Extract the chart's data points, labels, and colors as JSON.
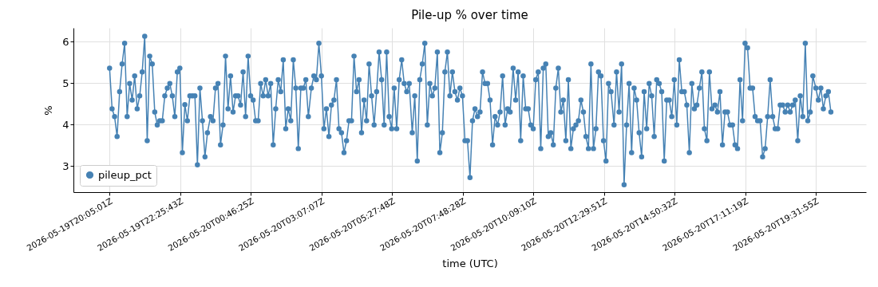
{
  "chart_data": {
    "type": "line",
    "title": "Pile-up % over time",
    "xlabel": "time (UTC)",
    "ylabel": "%",
    "x": [
      "2026-05-19T20:05",
      "2026-05-19T20:10",
      "2026-05-19T20:15",
      "2026-05-19T20:20",
      "2026-05-19T20:25",
      "2026-05-19T20:30",
      "2026-05-19T20:35",
      "2026-05-19T20:40",
      "2026-05-19T20:45",
      "2026-05-19T20:50",
      "2026-05-19T20:55",
      "2026-05-19T21:00",
      "2026-05-19T21:05",
      "2026-05-19T21:10",
      "2026-05-19T21:15",
      "2026-05-19T21:20",
      "2026-05-19T21:25",
      "2026-05-19T21:30",
      "2026-05-19T21:35",
      "2026-05-19T21:40",
      "2026-05-19T21:45",
      "2026-05-19T21:50",
      "2026-05-19T21:55",
      "2026-05-19T22:00",
      "2026-05-19T22:05",
      "2026-05-19T22:10",
      "2026-05-19T22:15",
      "2026-05-19T22:20",
      "2026-05-19T22:25",
      "2026-05-19T22:30",
      "2026-05-19T22:35",
      "2026-05-19T22:40",
      "2026-05-19T22:45",
      "2026-05-19T22:50",
      "2026-05-19T22:55",
      "2026-05-19T23:00",
      "2026-05-19T23:05",
      "2026-05-19T23:10",
      "2026-05-19T23:15",
      "2026-05-19T23:20",
      "2026-05-19T23:26",
      "2026-05-19T23:31",
      "2026-05-19T23:36",
      "2026-05-19T23:41",
      "2026-05-19T23:46",
      "2026-05-19T23:51",
      "2026-05-19T23:56",
      "2026-05-20T00:01",
      "2026-05-20T00:06",
      "2026-05-20T00:11",
      "2026-05-20T00:16",
      "2026-05-20T00:21",
      "2026-05-20T00:26",
      "2026-05-20T00:31",
      "2026-05-20T00:36",
      "2026-05-20T00:41",
      "2026-05-20T00:46",
      "2026-05-20T00:51",
      "2026-05-20T00:56",
      "2026-05-20T01:01",
      "2026-05-20T01:06",
      "2026-05-20T01:11",
      "2026-05-20T01:16",
      "2026-05-20T01:21",
      "2026-05-20T01:26",
      "2026-05-20T01:31",
      "2026-05-20T01:36",
      "2026-05-20T01:41",
      "2026-05-20T01:46",
      "2026-05-20T01:51",
      "2026-05-20T01:56",
      "2026-05-20T02:01",
      "2026-05-20T02:06",
      "2026-05-20T02:11",
      "2026-05-20T02:16",
      "2026-05-20T02:21",
      "2026-05-20T02:26",
      "2026-05-20T02:31",
      "2026-05-20T02:36",
      "2026-05-20T02:41",
      "2026-05-20T02:47",
      "2026-05-20T02:52",
      "2026-05-20T02:57",
      "2026-05-20T03:02",
      "2026-05-20T03:07",
      "2026-05-20T03:12",
      "2026-05-20T03:17",
      "2026-05-20T03:22",
      "2026-05-20T03:27",
      "2026-05-20T03:32",
      "2026-05-20T03:37",
      "2026-05-20T03:42",
      "2026-05-20T03:47",
      "2026-05-20T03:52",
      "2026-05-20T03:57",
      "2026-05-20T04:02",
      "2026-05-20T04:07",
      "2026-05-20T04:12",
      "2026-05-20T04:17",
      "2026-05-20T04:22",
      "2026-05-20T04:27",
      "2026-05-20T04:32",
      "2026-05-20T04:37",
      "2026-05-20T04:42",
      "2026-05-20T04:47",
      "2026-05-20T04:52",
      "2026-05-20T04:57",
      "2026-05-20T05:02",
      "2026-05-20T05:07",
      "2026-05-20T05:12",
      "2026-05-20T05:17",
      "2026-05-20T05:22",
      "2026-05-20T05:27",
      "2026-05-20T05:32",
      "2026-05-20T05:37",
      "2026-05-20T05:42",
      "2026-05-20T05:47",
      "2026-05-20T05:52",
      "2026-05-20T05:57",
      "2026-05-20T06:02",
      "2026-05-20T06:08",
      "2026-05-20T06:13",
      "2026-05-20T06:18",
      "2026-05-20T06:23",
      "2026-05-20T06:28",
      "2026-05-20T06:33",
      "2026-05-20T06:38",
      "2026-05-20T06:43",
      "2026-05-20T06:48",
      "2026-05-20T06:53",
      "2026-05-20T06:58",
      "2026-05-20T07:03",
      "2026-05-20T07:08",
      "2026-05-20T07:13",
      "2026-05-20T07:18",
      "2026-05-20T07:23",
      "2026-05-20T07:28",
      "2026-05-20T07:33",
      "2026-05-20T07:38",
      "2026-05-20T07:43",
      "2026-05-20T07:48",
      "2026-05-20T07:53",
      "2026-05-20T07:58",
      "2026-05-20T08:03",
      "2026-05-20T08:08",
      "2026-05-20T08:13",
      "2026-05-20T08:18",
      "2026-05-20T08:23",
      "2026-05-20T08:28",
      "2026-05-20T08:33",
      "2026-05-20T08:38",
      "2026-05-20T08:43",
      "2026-05-20T08:48",
      "2026-05-20T08:53",
      "2026-05-20T08:58",
      "2026-05-20T09:03",
      "2026-05-20T09:08",
      "2026-05-20T09:13",
      "2026-05-20T09:18",
      "2026-05-20T09:23",
      "2026-05-20T09:29",
      "2026-05-20T09:34",
      "2026-05-20T09:39",
      "2026-05-20T09:44",
      "2026-05-20T09:49",
      "2026-05-20T09:54",
      "2026-05-20T09:59",
      "2026-05-20T10:04",
      "2026-05-20T10:09",
      "2026-05-20T10:14",
      "2026-05-20T10:19",
      "2026-05-20T10:24",
      "2026-05-20T10:29",
      "2026-05-20T10:34",
      "2026-05-20T10:39",
      "2026-05-20T10:44",
      "2026-05-20T10:49",
      "2026-05-20T10:54",
      "2026-05-20T10:59",
      "2026-05-20T11:04",
      "2026-05-20T11:09",
      "2026-05-20T11:14",
      "2026-05-20T11:19",
      "2026-05-20T11:24",
      "2026-05-20T11:29",
      "2026-05-20T11:34",
      "2026-05-20T11:39",
      "2026-05-20T11:44",
      "2026-05-20T11:49",
      "2026-05-20T11:54",
      "2026-05-20T11:59",
      "2026-05-20T12:04",
      "2026-05-20T12:09",
      "2026-05-20T12:14",
      "2026-05-20T12:19",
      "2026-05-20T12:24",
      "2026-05-20T12:29",
      "2026-05-20T12:34",
      "2026-05-20T12:39",
      "2026-05-20T12:44",
      "2026-05-20T12:50",
      "2026-05-20T12:55",
      "2026-05-20T13:00",
      "2026-05-20T13:05",
      "2026-05-20T13:10",
      "2026-05-20T13:15",
      "2026-05-20T13:20",
      "2026-05-20T13:25",
      "2026-05-20T13:30",
      "2026-05-20T13:35",
      "2026-05-20T13:40",
      "2026-05-20T13:45",
      "2026-05-20T13:50",
      "2026-05-20T13:55",
      "2026-05-20T14:00",
      "2026-05-20T14:05",
      "2026-05-20T14:10",
      "2026-05-20T14:15",
      "2026-05-20T14:20",
      "2026-05-20T14:25",
      "2026-05-20T14:30",
      "2026-05-20T14:35",
      "2026-05-20T14:40",
      "2026-05-20T14:45",
      "2026-05-20T14:50",
      "2026-05-20T14:55",
      "2026-05-20T15:00",
      "2026-05-20T15:05",
      "2026-05-20T15:10",
      "2026-05-20T15:15",
      "2026-05-20T15:20",
      "2026-05-20T15:25",
      "2026-05-20T15:30",
      "2026-05-20T15:35",
      "2026-05-20T15:40",
      "2026-05-20T15:45",
      "2026-05-20T15:50",
      "2026-05-20T15:55",
      "2026-05-20T16:00",
      "2026-05-20T16:05",
      "2026-05-20T16:11",
      "2026-05-20T16:16",
      "2026-05-20T16:21",
      "2026-05-20T16:26",
      "2026-05-20T16:31",
      "2026-05-20T16:36",
      "2026-05-20T16:41",
      "2026-05-20T16:46",
      "2026-05-20T16:51",
      "2026-05-20T16:56",
      "2026-05-20T17:01",
      "2026-05-20T17:06",
      "2026-05-20T17:11",
      "2026-05-20T17:16",
      "2026-05-20T17:21",
      "2026-05-20T17:26",
      "2026-05-20T17:31",
      "2026-05-20T17:36",
      "2026-05-20T17:41",
      "2026-05-20T17:46",
      "2026-05-20T17:51",
      "2026-05-20T17:56",
      "2026-05-20T18:01",
      "2026-05-20T18:06",
      "2026-05-20T18:11",
      "2026-05-20T18:16",
      "2026-05-20T18:21",
      "2026-05-20T18:26",
      "2026-05-20T18:31",
      "2026-05-20T18:36",
      "2026-05-20T18:41",
      "2026-05-20T18:46",
      "2026-05-20T18:51",
      "2026-05-20T18:56",
      "2026-05-20T19:01",
      "2026-05-20T19:06",
      "2026-05-20T19:11",
      "2026-05-20T19:16",
      "2026-05-20T19:21",
      "2026-05-20T19:26",
      "2026-05-20T19:32",
      "2026-05-20T19:37",
      "2026-05-20T19:42",
      "2026-05-20T19:47",
      "2026-05-20T19:52",
      "2026-05-20T19:57",
      "2026-05-20T20:02"
    ],
    "series": [
      {
        "name": "pileup_pct",
        "color": "#4682b4",
        "values": [
          5.36,
          4.38,
          4.19,
          3.71,
          4.79,
          5.46,
          5.96,
          4.19,
          4.99,
          4.59,
          5.17,
          4.38,
          4.69,
          5.27,
          6.13,
          3.61,
          5.65,
          5.46,
          4.3,
          3.99,
          4.09,
          4.09,
          4.69,
          4.88,
          4.99,
          4.69,
          4.19,
          5.27,
          5.36,
          3.32,
          4.48,
          4.09,
          4.69,
          4.69,
          4.69,
          3.03,
          4.88,
          4.09,
          3.22,
          3.8,
          4.19,
          4.09,
          4.88,
          4.99,
          3.51,
          3.99,
          5.65,
          4.38,
          5.17,
          4.3,
          4.69,
          4.69,
          4.47,
          5.27,
          4.19,
          5.65,
          4.69,
          4.59,
          4.09,
          4.09,
          4.99,
          4.69,
          5.08,
          4.69,
          4.99,
          3.51,
          4.38,
          5.08,
          4.79,
          5.56,
          3.9,
          4.38,
          4.09,
          5.56,
          4.88,
          3.42,
          4.88,
          4.88,
          5.08,
          4.19,
          4.88,
          5.17,
          5.08,
          5.96,
          5.17,
          3.9,
          4.38,
          3.71,
          4.47,
          4.59,
          5.08,
          3.9,
          3.8,
          3.32,
          3.61,
          4.09,
          4.09,
          5.65,
          4.79,
          5.08,
          3.8,
          4.59,
          4.09,
          5.46,
          4.69,
          3.99,
          4.79,
          5.75,
          5.08,
          3.99,
          5.75,
          4.19,
          3.9,
          4.88,
          3.9,
          5.08,
          5.56,
          4.99,
          4.79,
          4.99,
          3.8,
          4.69,
          3.12,
          5.08,
          5.46,
          5.96,
          3.99,
          4.99,
          4.69,
          4.88,
          5.75,
          3.32,
          3.8,
          5.27,
          5.75,
          4.69,
          5.27,
          4.79,
          4.59,
          4.88,
          4.69,
          3.61,
          3.61,
          2.72,
          4.09,
          4.38,
          4.19,
          4.3,
          5.27,
          4.99,
          4.99,
          4.59,
          3.51,
          4.19,
          3.99,
          4.3,
          5.17,
          3.99,
          4.38,
          4.3,
          5.36,
          4.59,
          5.27,
          3.61,
          5.17,
          4.38,
          4.38,
          3.99,
          3.9,
          5.08,
          5.27,
          3.42,
          5.36,
          5.46,
          3.71,
          3.8,
          3.51,
          4.88,
          5.36,
          4.3,
          4.59,
          3.61,
          5.08,
          3.42,
          3.9,
          3.99,
          4.09,
          4.59,
          4.3,
          3.71,
          3.42,
          5.46,
          3.42,
          3.9,
          5.27,
          5.17,
          3.61,
          3.12,
          4.99,
          4.79,
          3.99,
          5.27,
          4.3,
          5.46,
          2.55,
          3.99,
          4.99,
          3.32,
          4.88,
          4.59,
          3.8,
          3.22,
          4.79,
          3.9,
          4.99,
          4.69,
          3.71,
          5.08,
          4.99,
          4.79,
          3.12,
          4.59,
          4.59,
          4.19,
          5.08,
          3.99,
          5.56,
          4.79,
          4.79,
          4.47,
          3.32,
          4.99,
          4.38,
          4.47,
          4.88,
          5.27,
          3.9,
          3.61,
          5.27,
          4.38,
          4.47,
          4.3,
          4.79,
          3.51,
          4.3,
          4.3,
          3.99,
          3.99,
          3.51,
          3.42,
          5.08,
          4.09,
          5.96,
          5.85,
          4.88,
          4.88,
          4.19,
          4.09,
          4.09,
          3.22,
          3.42,
          4.19,
          5.08,
          4.19,
          3.9,
          3.9,
          4.47,
          4.47,
          4.3,
          4.47,
          4.3,
          4.47,
          4.59,
          3.61,
          4.69,
          4.19,
          5.96,
          4.09,
          4.3,
          5.17,
          4.88,
          4.59,
          4.88,
          4.38,
          4.69,
          4.79,
          4.3
        ]
      }
    ],
    "xlim": [
      "2026-05-19T18:53",
      "2026-05-20T21:12"
    ],
    "xticks": [
      {
        "value": "2026-05-19T20:05:01",
        "label": "2026-05-19T20:05:01Z"
      },
      {
        "value": "2026-05-19T22:25:43",
        "label": "2026-05-19T22:25:43Z"
      },
      {
        "value": "2026-05-20T00:46:25",
        "label": "2026-05-20T00:46:25Z"
      },
      {
        "value": "2026-05-20T03:07:07",
        "label": "2026-05-20T03:07:07Z"
      },
      {
        "value": "2026-05-20T05:27:48",
        "label": "2026-05-20T05:27:48Z"
      },
      {
        "value": "2026-05-20T07:48:28",
        "label": "2026-05-20T07:48:28Z"
      },
      {
        "value": "2026-05-20T10:09:10",
        "label": "2026-05-20T10:09:10Z"
      },
      {
        "value": "2026-05-20T12:29:51",
        "label": "2026-05-20T12:29:51Z"
      },
      {
        "value": "2026-05-20T14:50:32",
        "label": "2026-05-20T14:50:32Z"
      },
      {
        "value": "2026-05-20T17:11:19",
        "label": "2026-05-20T17:11:19Z"
      },
      {
        "value": "2026-05-20T19:31:55",
        "label": "2026-05-20T19:31:55Z"
      }
    ],
    "ylim": [
      2.37,
      6.33
    ],
    "yticks": [
      3,
      4,
      5,
      6
    ],
    "grid": true,
    "legend": "bottom left",
    "marker": "circle",
    "line_style": "solid"
  }
}
